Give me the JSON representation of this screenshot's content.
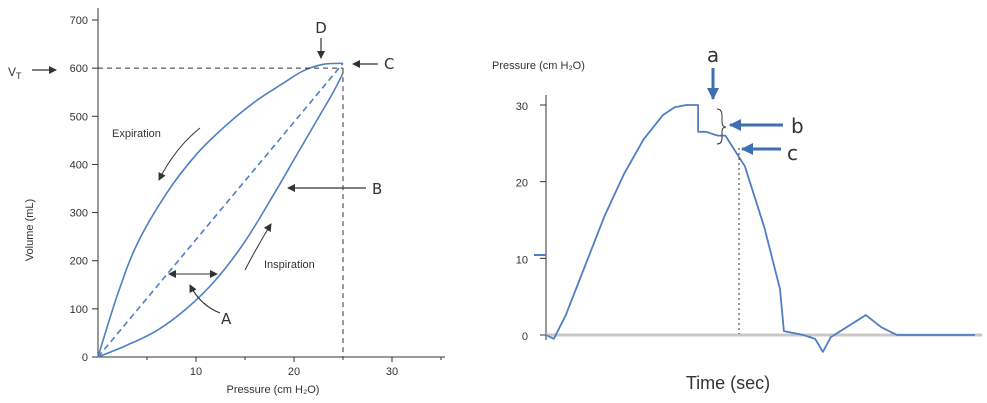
{
  "colors": {
    "curve": "#4f7ec4",
    "axis": "#333333",
    "baseline": "#c8c8c8",
    "arrow_blue": "#3d6fb5",
    "text": "#333333"
  },
  "chart_data": [
    {
      "type": "line",
      "xlabel": "Pressure (cm H₂O)",
      "ylabel": "Volume (mL)",
      "xlim": [
        0,
        35
      ],
      "ylim": [
        0,
        750
      ],
      "x_ticks": [
        "10",
        "20",
        "30"
      ],
      "y_ticks": [
        "0",
        "100",
        "200",
        "300",
        "400",
        "500",
        "600",
        "700"
      ],
      "series": [
        {
          "role": "expiration-limb",
          "x": [
            0,
            2,
            4,
            7,
            10,
            13,
            16,
            19,
            21,
            23,
            25
          ],
          "y": [
            0,
            130,
            235,
            340,
            420,
            480,
            530,
            570,
            595,
            608,
            610
          ]
        },
        {
          "role": "inspiration-limb",
          "x": [
            0,
            3,
            6,
            9,
            12,
            15,
            18,
            20,
            22,
            24,
            25
          ],
          "y": [
            0,
            25,
            55,
            100,
            160,
            240,
            340,
            410,
            480,
            550,
            590
          ]
        },
        {
          "role": "compliance-line",
          "x": [
            0,
            25
          ],
          "y": [
            0,
            610
          ]
        }
      ],
      "reference_lines": {
        "vt_volume": 600,
        "end_pressure": 25
      },
      "annotations": {
        "vt_label": "V",
        "vt_sub": "T",
        "A": "A",
        "B": "B",
        "C": "C",
        "D": "D",
        "expiration": "Expiration",
        "inspiration": "Inspiration"
      }
    },
    {
      "type": "line",
      "ylabel": "Pressure (cm H₂O)",
      "xlabel": "Time (sec)",
      "ylim": [
        -3,
        32
      ],
      "y_ticks": [
        "0",
        "10",
        "20",
        "30"
      ],
      "series": [
        {
          "role": "airway-pressure",
          "t": [
            0,
            0.2,
            0.5,
            1,
            1.5,
            2,
            2.5,
            3,
            3.3,
            3.6,
            3.9,
            4.1,
            4.4,
            4.6,
            5.1,
            5.6,
            6,
            6.1,
            6.6,
            6.9,
            7.1,
            7.3,
            8.2,
            8.6,
            9,
            9.2,
            9.5,
            9.9,
            10.3,
            11
          ],
          "p": [
            0,
            -0.5,
            2.5,
            9,
            15.5,
            21,
            25.5,
            28.7,
            29.7,
            30,
            30,
            26.5,
            26,
            26,
            22,
            14,
            6,
            0.5,
            0,
            -0.5,
            -2.2,
            -0.3,
            2.6,
            1,
            0,
            0,
            0,
            0,
            0,
            0
          ]
        }
      ],
      "annotations": {
        "a": "a",
        "b": "b",
        "c": "c"
      },
      "peak_pressure": 30,
      "plateau_pressure": 26
    }
  ]
}
